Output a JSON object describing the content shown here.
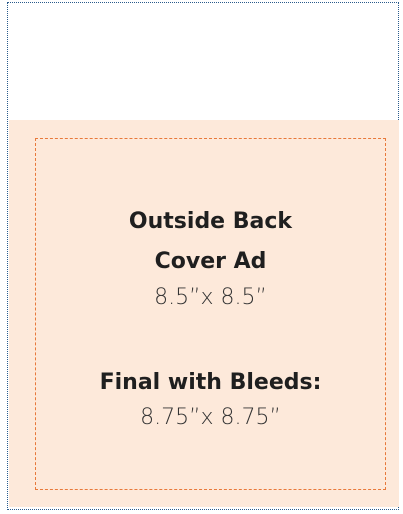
{
  "ad": {
    "title_lines": [
      "Outside Back",
      "Cover Ad"
    ],
    "size": "8.5”x 8.5”",
    "bleed_label": "Final with Bleeds:",
    "bleed_size": "8.75”x 8.75”"
  }
}
